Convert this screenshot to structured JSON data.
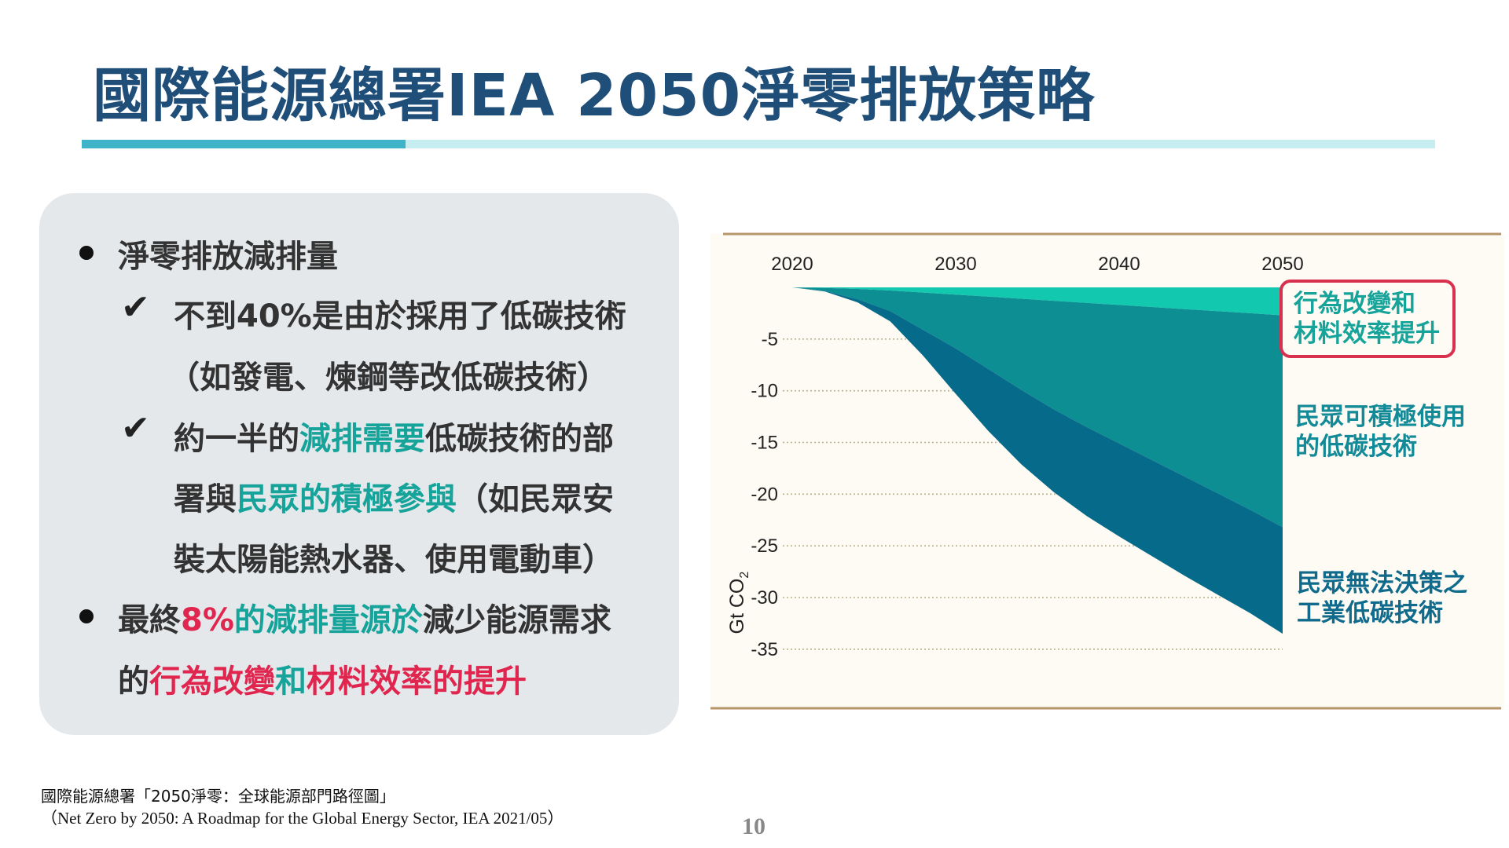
{
  "title": "國際能源總署IEA 2050淨零排放策略",
  "left_panel": {
    "b1": "淨零排放減排量",
    "c1_l1": "不到40%是由於採用了低碳技術",
    "c1_l2": "（如發電、煉鋼等改低碳技術）",
    "c2_l1_a": "約一半的",
    "c2_l1_b": "減排需要",
    "c2_l1_c": "低碳技術的部",
    "c2_l2_a": "署與",
    "c2_l2_b": "民眾的積極參與",
    "c2_l2_c": "（如民眾安",
    "c2_l3": "裝太陽能熱水器、使用電動車）",
    "b2_l1_a": "最終",
    "b2_l1_b": "8%",
    "b2_l1_c": "的減排量源於",
    "b2_l1_d": "減少能源需求",
    "b2_l2_a": "的",
    "b2_l2_b": "行為改變",
    "b2_l2_c": "和",
    "b2_l2_d": "材料效率的提升",
    "bullet_icon": "bullet-dot-icon",
    "check_icon": "check-mark-icon",
    "check_glyph": "✔"
  },
  "chart_data": {
    "type": "area",
    "x": [
      2020,
      2022,
      2024,
      2026,
      2028,
      2030,
      2032,
      2034,
      2036,
      2038,
      2040,
      2042,
      2044,
      2046,
      2048,
      2050
    ],
    "x_ticks": [
      "2020",
      "2030",
      "2040",
      "2050"
    ],
    "y_ticks": [
      "-5",
      "-10",
      "-15",
      "-20",
      "-25",
      "-30",
      "-35"
    ],
    "ylabel": "Gt CO",
    "ylabel_sub": "2",
    "ylim": [
      -36,
      0
    ],
    "xlim": [
      2020,
      2050
    ],
    "grid": "dotted horizontal",
    "stacked": true,
    "series": [
      {
        "name": "行為改變和材料效率提升",
        "color": "#12c9b0",
        "values": [
          0,
          -0.05,
          -0.15,
          -0.3,
          -0.5,
          -0.7,
          -0.9,
          -1.1,
          -1.3,
          -1.5,
          -1.7,
          -1.9,
          -2.1,
          -2.3,
          -2.5,
          -2.7
        ]
      },
      {
        "name": "民眾可積極使用的低碳技術",
        "color": "#0c8e93",
        "values": [
          0,
          -0.3,
          -1.0,
          -2.0,
          -3.6,
          -5.2,
          -7.0,
          -8.8,
          -10.5,
          -12.0,
          -13.4,
          -14.8,
          -16.2,
          -17.6,
          -19.0,
          -20.5
        ]
      },
      {
        "name": "民眾無法決策之工業低碳技術",
        "color": "#066a8a",
        "values": [
          0,
          -0.05,
          -0.3,
          -1.0,
          -2.5,
          -4.4,
          -6.0,
          -7.2,
          -8.0,
          -8.6,
          -9.0,
          -9.3,
          -9.6,
          -9.8,
          -10.0,
          -10.3
        ]
      }
    ]
  },
  "labels": {
    "behav_l1": "行為改變和",
    "behav_l2": "材料效率提升",
    "citizen_l1": "民眾可積極使用",
    "citizen_l2": "的低碳技術",
    "industry_l1": "民眾無法決策之",
    "industry_l2": "工業低碳技術"
  },
  "source": {
    "zh": "國際能源總署「2050淨零：全球能源部門路徑圖」",
    "en": "（Net Zero by 2050: A Roadmap for the Global Energy Sector, IEA 2021/05）"
  },
  "page_number": "10"
}
